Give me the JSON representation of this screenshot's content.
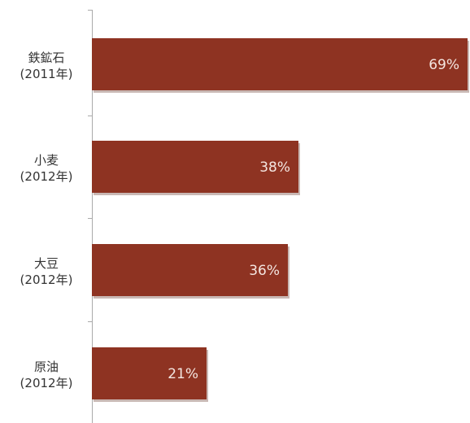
{
  "chart_data": {
    "type": "bar",
    "orientation": "horizontal",
    "categories": [
      [
        "鉄鉱石",
        "(2011年)"
      ],
      [
        "小麦",
        "(2012年)"
      ],
      [
        "大豆",
        "(2012年)"
      ],
      [
        "原油",
        "(2012年)"
      ]
    ],
    "values": [
      69,
      38,
      36,
      21
    ],
    "value_labels": [
      "69%",
      "38%",
      "36%",
      "21%"
    ],
    "value_unit": "%",
    "xlim": [
      0,
      69
    ],
    "grid": false,
    "colors": {
      "bar": "#8e3322",
      "bar_shadow": "#c9b8b4",
      "axis": "#aaaaaa",
      "value_text": "#f4e6e1",
      "category_text": "#333333"
    }
  }
}
